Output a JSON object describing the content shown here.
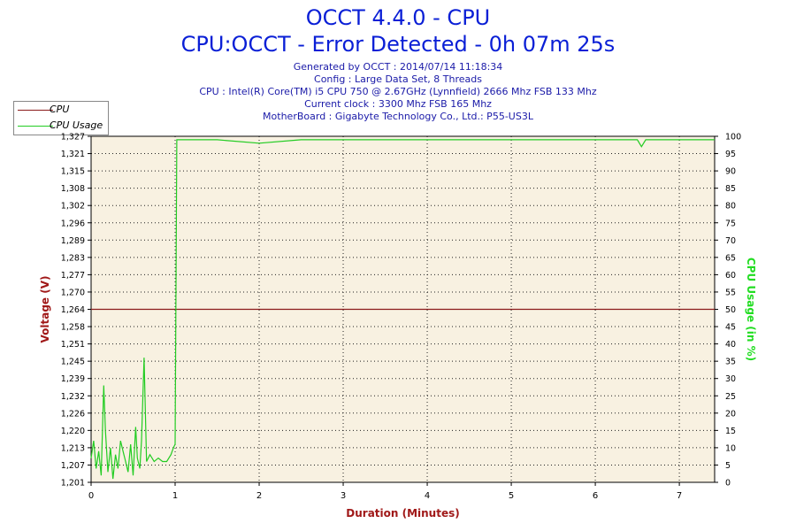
{
  "header": {
    "title": "OCCT 4.4.0 - CPU",
    "subtitle": "CPU:OCCT - Error Detected - 0h 07m 25s",
    "info_lines": [
      "Generated by OCCT : 2014/07/14 11:18:34",
      "Config : Large Data Set, 8 Threads",
      "CPU : Intel(R) Core(TM) i5 CPU 750 @ 2.67GHz (Lynnfield) 2666 Mhz FSB 133 Mhz",
      "Current clock : 3300 Mhz FSB 165 Mhz",
      "MotherBoard : Gigabyte Technology Co., Ltd.: P55-US3L"
    ]
  },
  "legend": {
    "items": [
      {
        "label": "CPU",
        "color": "#8b1a1a"
      },
      {
        "label": "CPU Usage",
        "color": "#22cc22"
      }
    ]
  },
  "colors": {
    "plot_bg": "#f8f1e1",
    "voltage": "#8b1a1a",
    "usage": "#22cc22",
    "axis_label_left": "#a01818",
    "axis_label_right": "#22dd22",
    "axis_label_bottom": "#a01818"
  },
  "chart_data": {
    "type": "line",
    "xlabel": "Duration (Minutes)",
    "ylabel_left": "Voltage (V)",
    "ylabel_right": "CPU Usage (in %)",
    "xlim": [
      0,
      7.42
    ],
    "ylim_left": [
      1.201,
      1.327
    ],
    "ylim_right": [
      0,
      100
    ],
    "grid": true,
    "legend_position": "top-left",
    "x_ticks": [
      "0",
      "1",
      "2",
      "3",
      "4",
      "5",
      "6",
      "7"
    ],
    "y_ticks_left": [
      "1,201",
      "1,207",
      "1,213",
      "1,220",
      "1,226",
      "1,232",
      "1,239",
      "1,245",
      "1,251",
      "1,258",
      "1,264",
      "1,270",
      "1,277",
      "1,283",
      "1,289",
      "1,296",
      "1,302",
      "1,308",
      "1,315",
      "1,321",
      "1,327"
    ],
    "y_ticks_right": [
      "0",
      "5",
      "10",
      "15",
      "20",
      "25",
      "30",
      "35",
      "40",
      "45",
      "50",
      "55",
      "60",
      "65",
      "70",
      "75",
      "80",
      "85",
      "90",
      "95",
      "100"
    ],
    "series": [
      {
        "name": "CPU",
        "axis": "left",
        "x": [
          0,
          7.42
        ],
        "y": [
          1.264,
          1.264
        ]
      },
      {
        "name": "CPU Usage",
        "axis": "right",
        "x": [
          0.0,
          0.03,
          0.06,
          0.09,
          0.12,
          0.15,
          0.17,
          0.2,
          0.23,
          0.26,
          0.29,
          0.32,
          0.35,
          0.38,
          0.41,
          0.44,
          0.47,
          0.5,
          0.53,
          0.55,
          0.58,
          0.6,
          0.63,
          0.66,
          0.7,
          0.75,
          0.8,
          0.85,
          0.9,
          0.95,
          0.98,
          1.0,
          1.02,
          1.05,
          1.5,
          2.0,
          2.5,
          3.0,
          3.5,
          4.0,
          4.5,
          5.0,
          5.5,
          6.0,
          6.5,
          6.55,
          6.6,
          7.0,
          7.42
        ],
        "y": [
          7,
          12,
          4,
          9,
          2,
          28,
          15,
          3,
          10,
          1,
          8,
          4,
          12,
          9,
          6,
          3,
          11,
          2,
          16,
          7,
          4,
          12,
          36,
          6,
          8,
          6,
          7,
          6,
          6,
          8,
          10,
          11,
          99,
          99,
          99,
          98,
          99,
          99,
          99,
          99,
          99,
          99,
          99,
          99,
          99,
          97,
          99,
          99,
          99
        ]
      }
    ]
  }
}
